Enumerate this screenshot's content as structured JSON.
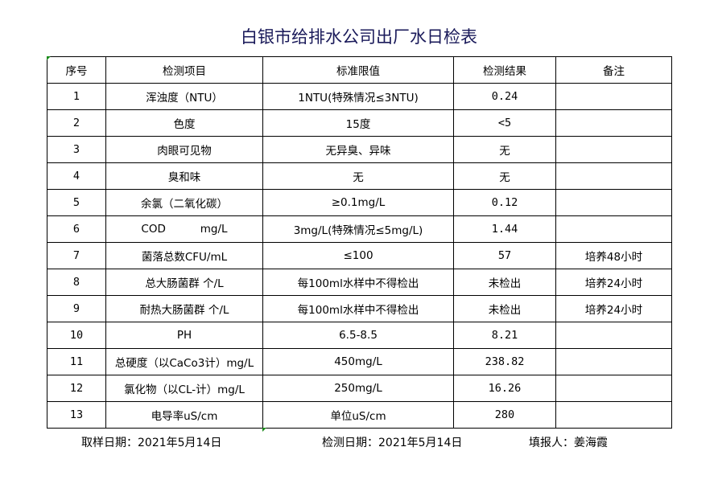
{
  "title": "白银市给排水公司出厂水日检表",
  "headers": [
    "序号",
    "检测项目",
    "标准限值",
    "检测结果",
    "备注"
  ],
  "rows": [
    [
      "1",
      "浑浊度（NTU）",
      "1NTU(特殊情况≤3NTU)",
      "0.24",
      ""
    ],
    [
      "2",
      "色度",
      "15度",
      "<5",
      ""
    ],
    [
      "3",
      "肉眼可见物",
      "无异臭、异味",
      "无",
      ""
    ],
    [
      "4",
      "臭和味",
      "无",
      "无",
      ""
    ],
    [
      "5",
      "余氯（二氧化碳）",
      "≥0.1mg/L",
      "0.12",
      ""
    ],
    [
      "6",
      "COD          mg/L",
      "3mg/L(特殊情况≤5mg/L)",
      "1.44",
      ""
    ],
    [
      "7",
      "菌落总数CFU/mL",
      "≤100",
      "57",
      "培养48小时"
    ],
    [
      "8",
      "总大肠菌群 个/L",
      "每100ml水样中不得检出",
      "未检出",
      "培养24小时"
    ],
    [
      "9",
      "耐热大肠菌群 个/L",
      "每100ml水样中不得检出",
      "未检出",
      "培养24小时"
    ],
    [
      "10",
      "PH",
      "6.5-8.5",
      "8.21",
      ""
    ],
    [
      "11",
      "总硬度（以CaCo3计）mg/L",
      "450mg/L",
      "238.82",
      ""
    ],
    [
      "12",
      "氯化物（以CL-计）mg/L",
      "250mg/L",
      "16.26",
      ""
    ],
    [
      "13",
      "电导率uS/cm",
      "单位uS/cm",
      "280",
      ""
    ]
  ],
  "footer": {
    "sampling_date": "取样日期：2021年5月14日",
    "test_date": "检测日期：2021年5月14日",
    "filled_by": "填报人：姜海霞"
  }
}
